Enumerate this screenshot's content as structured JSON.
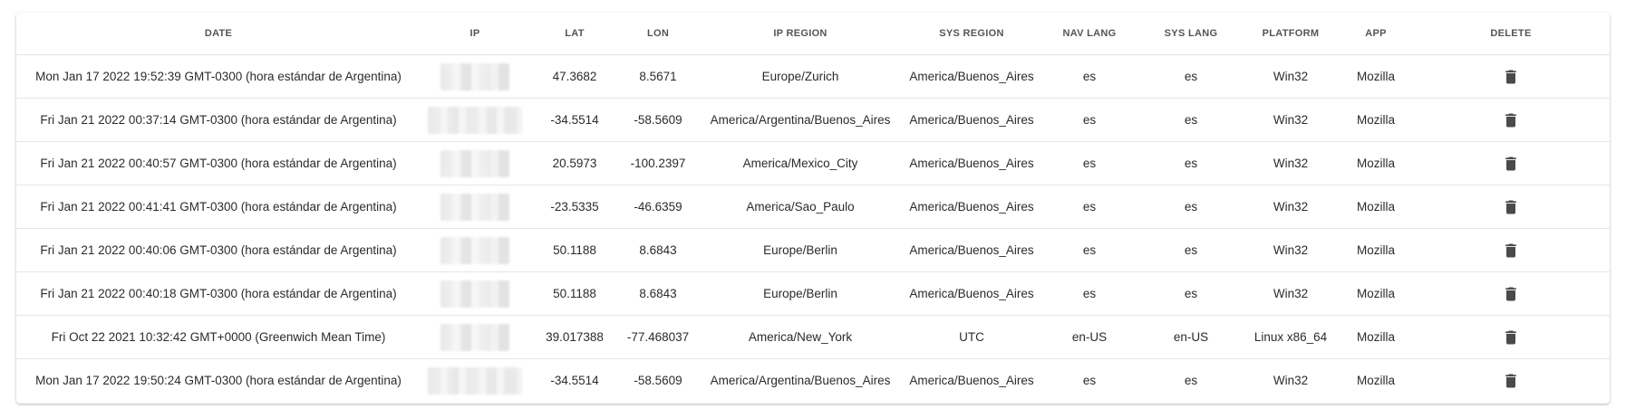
{
  "table": {
    "headers": {
      "date": "DATE",
      "ip": "IP",
      "lat": "LAT",
      "lon": "LON",
      "ip_region": "IP REGION",
      "sys_region": "SYS REGION",
      "nav_lang": "NAV LANG",
      "sys_lang": "SYS LANG",
      "platform": "PLATFORM",
      "app": "APP",
      "delete": "DELETE"
    },
    "rows": [
      {
        "date": "Mon Jan 17 2022 19:52:39 GMT-0300 (hora estándar de Argentina)",
        "lat": "47.3682",
        "lon": "8.5671",
        "ip_region": "Europe/Zurich",
        "sys_region": "America/Buenos_Aires",
        "nav_lang": "es",
        "sys_lang": "es",
        "platform": "Win32",
        "app": "Mozilla"
      },
      {
        "date": "Fri Jan 21 2022 00:37:14 GMT-0300 (hora estándar de Argentina)",
        "lat": "-34.5514",
        "lon": "-58.5609",
        "ip_region": "America/Argentina/Buenos_Aires",
        "sys_region": "America/Buenos_Aires",
        "nav_lang": "es",
        "sys_lang": "es",
        "platform": "Win32",
        "app": "Mozilla"
      },
      {
        "date": "Fri Jan 21 2022 00:40:57 GMT-0300 (hora estándar de Argentina)",
        "lat": "20.5973",
        "lon": "-100.2397",
        "ip_region": "America/Mexico_City",
        "sys_region": "America/Buenos_Aires",
        "nav_lang": "es",
        "sys_lang": "es",
        "platform": "Win32",
        "app": "Mozilla"
      },
      {
        "date": "Fri Jan 21 2022 00:41:41 GMT-0300 (hora estándar de Argentina)",
        "lat": "-23.5335",
        "lon": "-46.6359",
        "ip_region": "America/Sao_Paulo",
        "sys_region": "America/Buenos_Aires",
        "nav_lang": "es",
        "sys_lang": "es",
        "platform": "Win32",
        "app": "Mozilla"
      },
      {
        "date": "Fri Jan 21 2022 00:40:06 GMT-0300 (hora estándar de Argentina)",
        "lat": "50.1188",
        "lon": "8.6843",
        "ip_region": "Europe/Berlin",
        "sys_region": "America/Buenos_Aires",
        "nav_lang": "es",
        "sys_lang": "es",
        "platform": "Win32",
        "app": "Mozilla"
      },
      {
        "date": "Fri Jan 21 2022 00:40:18 GMT-0300 (hora estándar de Argentina)",
        "lat": "50.1188",
        "lon": "8.6843",
        "ip_region": "Europe/Berlin",
        "sys_region": "America/Buenos_Aires",
        "nav_lang": "es",
        "sys_lang": "es",
        "platform": "Win32",
        "app": "Mozilla"
      },
      {
        "date": "Fri Oct 22 2021 10:32:42 GMT+0000 (Greenwich Mean Time)",
        "lat": "39.017388",
        "lon": "-77.468037",
        "ip_region": "America/New_York",
        "sys_region": "UTC",
        "nav_lang": "en-US",
        "sys_lang": "en-US",
        "platform": "Linux x86_64",
        "app": "Mozilla"
      },
      {
        "date": "Mon Jan 17 2022 19:50:24 GMT-0300 (hora estándar de Argentina)",
        "lat": "-34.5514",
        "lon": "-58.5609",
        "ip_region": "America/Argentina/Buenos_Aires",
        "sys_region": "America/Buenos_Aires",
        "nav_lang": "es",
        "sys_lang": "es",
        "platform": "Win32",
        "app": "Mozilla"
      }
    ]
  },
  "icons": {
    "delete": "trash-icon"
  }
}
